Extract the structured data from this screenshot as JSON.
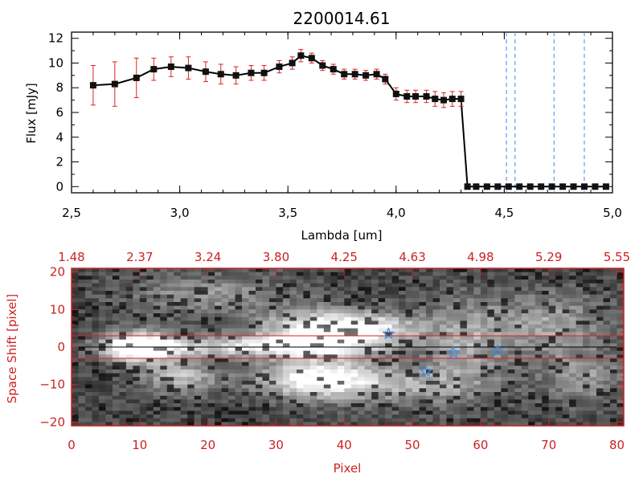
{
  "colors": {
    "ink": "#000000",
    "accent_red": "#cc2222",
    "marker_blue": "#3a8ee6",
    "line_red": "#dd2222"
  },
  "chart_data": [
    {
      "type": "line",
      "title": "2200014.61",
      "xlabel": "Lambda [um]",
      "ylabel": "Flux [mJy]",
      "xlim": [
        2.5,
        5.0
      ],
      "ylim": [
        -0.5,
        12.5
      ],
      "x_ticks": [
        "2.5",
        "3.0",
        "3.5",
        "4.0",
        "4.5",
        "5.0"
      ],
      "y_ticks": [
        "0",
        "2",
        "4",
        "6",
        "8",
        "10",
        "12"
      ],
      "grid": false,
      "series": [
        {
          "x": [
            2.6,
            2.7,
            2.8,
            2.88,
            2.96,
            3.04,
            3.12,
            3.19,
            3.26,
            3.33,
            3.39,
            3.46,
            3.52,
            3.56,
            3.61,
            3.66,
            3.71,
            3.76,
            3.81,
            3.86,
            3.91,
            3.95,
            4.0,
            4.05,
            4.09,
            4.14,
            4.18,
            4.22,
            4.26,
            4.3,
            4.33,
            4.37,
            4.42,
            4.47,
            4.52,
            4.57,
            4.62,
            4.67,
            4.72,
            4.77,
            4.82,
            4.87,
            4.92,
            4.97
          ],
          "y": [
            8.2,
            8.3,
            8.8,
            9.5,
            9.7,
            9.6,
            9.3,
            9.1,
            9.0,
            9.2,
            9.2,
            9.7,
            10.0,
            10.6,
            10.4,
            9.8,
            9.5,
            9.1,
            9.1,
            9.0,
            9.1,
            8.7,
            7.5,
            7.3,
            7.3,
            7.3,
            7.1,
            7.0,
            7.1,
            7.1,
            0.0,
            0.0,
            0.0,
            0.0,
            0.0,
            0.0,
            0.0,
            0.0,
            0.0,
            0.0,
            0.0,
            0.0,
            0.0,
            0.0
          ],
          "yerr": [
            1.6,
            1.8,
            1.6,
            0.9,
            0.8,
            0.9,
            0.8,
            0.8,
            0.7,
            0.6,
            0.6,
            0.5,
            0.5,
            0.5,
            0.4,
            0.4,
            0.4,
            0.4,
            0.4,
            0.4,
            0.4,
            0.4,
            0.5,
            0.5,
            0.5,
            0.5,
            0.6,
            0.6,
            0.6,
            0.6,
            0.1,
            0.1,
            0.1,
            0.1,
            0.1,
            0.1,
            0.1,
            0.1,
            0.1,
            0.1,
            0.1,
            0.1,
            0.1,
            0.1
          ]
        }
      ],
      "vlines": [
        4.51,
        4.55,
        4.73,
        4.87
      ]
    },
    {
      "type": "heatmap",
      "xlabel": "Pixel",
      "ylabel": "Space Shift [pixel]",
      "xlim": [
        0,
        81
      ],
      "ylim": [
        -21,
        21
      ],
      "x_ticks": [
        "0",
        "10",
        "20",
        "30",
        "40",
        "50",
        "60",
        "70",
        "80"
      ],
      "y_ticks": [
        "−20",
        "−10",
        "0",
        "10",
        "20"
      ],
      "top_ticks": [
        "1.48",
        "2.37",
        "3.24",
        "3.80",
        "4.25",
        "4.63",
        "4.98",
        "5.29",
        "5.55"
      ],
      "hlines": [
        3,
        0,
        -3
      ],
      "stars": [
        {
          "x": 46.5,
          "y": 3.5
        },
        {
          "x": 52,
          "y": -6.5
        },
        {
          "x": 56,
          "y": -1.5
        },
        {
          "x": 62.5,
          "y": -1
        }
      ],
      "blobs": [
        {
          "x": 10,
          "y": 0,
          "sx": 3.5,
          "sy": 2.8,
          "a": 1.0
        },
        {
          "x": 26,
          "y": 0,
          "sx": 12,
          "sy": 2.0,
          "a": 0.55
        },
        {
          "x": 36,
          "y": 4,
          "sx": 6,
          "sy": 4,
          "a": 0.75
        },
        {
          "x": 36,
          "y": -8.5,
          "sx": 6,
          "sy": 3.5,
          "a": 0.78
        },
        {
          "x": 16,
          "y": -8,
          "sx": 4,
          "sy": 3,
          "a": 0.45
        },
        {
          "x": 45,
          "y": 5,
          "sx": 5,
          "sy": 3,
          "a": 0.5
        },
        {
          "x": 70,
          "y": 6,
          "sx": 6,
          "sy": 6,
          "a": 0.35
        },
        {
          "x": 58,
          "y": 2,
          "sx": 4,
          "sy": 8,
          "a": 0.35
        },
        {
          "x": 20,
          "y": 14,
          "sx": 8,
          "sy": 4,
          "a": 0.3
        },
        {
          "x": 50,
          "y": -10,
          "sx": 8,
          "sy": 4,
          "a": 0.35
        },
        {
          "x": 75,
          "y": -8,
          "sx": 4,
          "sy": 5,
          "a": 0.3
        }
      ]
    }
  ]
}
